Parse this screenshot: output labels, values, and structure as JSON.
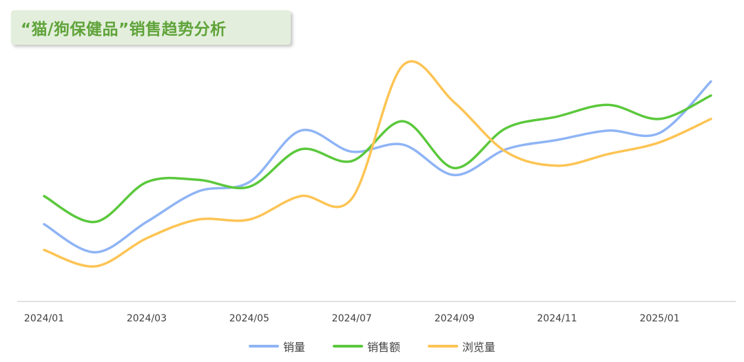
{
  "chart_data": {
    "type": "line",
    "title": "“猫/狗保健品”销售趋势分析",
    "x": [
      "2024/01",
      "2024/02",
      "2024/03",
      "2024/04",
      "2024/05",
      "2024/06",
      "2024/07",
      "2024/08",
      "2024/09",
      "2024/10",
      "2024/11",
      "2024/12",
      "2025/01",
      "2025/02"
    ],
    "xticks": [
      "2024/01",
      "2024/03",
      "2024/05",
      "2024/07",
      "2024/09",
      "2024/11",
      "2025/01"
    ],
    "ylim": [
      0,
      100
    ],
    "grid": false,
    "legend_position": "bottom",
    "series": [
      {
        "name": "销量",
        "color": "#8fb4f5",
        "values": [
          33,
          21,
          34,
          47,
          51,
          73,
          64,
          67,
          54,
          65,
          69,
          73,
          72,
          94
        ]
      },
      {
        "name": "销售额",
        "color": "#5bc83c",
        "values": [
          45,
          34,
          51,
          52,
          49,
          65,
          60,
          77,
          57,
          74,
          79,
          84,
          78,
          88
        ]
      },
      {
        "name": "浏览量",
        "color": "#fdc454",
        "values": [
          22,
          15,
          27,
          35,
          35,
          45,
          44,
          101,
          85,
          64,
          58,
          63,
          68,
          78
        ]
      }
    ]
  },
  "colors": {
    "title_bg": "#e3efdc",
    "title_text": "#5fa33a",
    "axis_line": "#d9d9d9",
    "tick_text": "#404040"
  }
}
